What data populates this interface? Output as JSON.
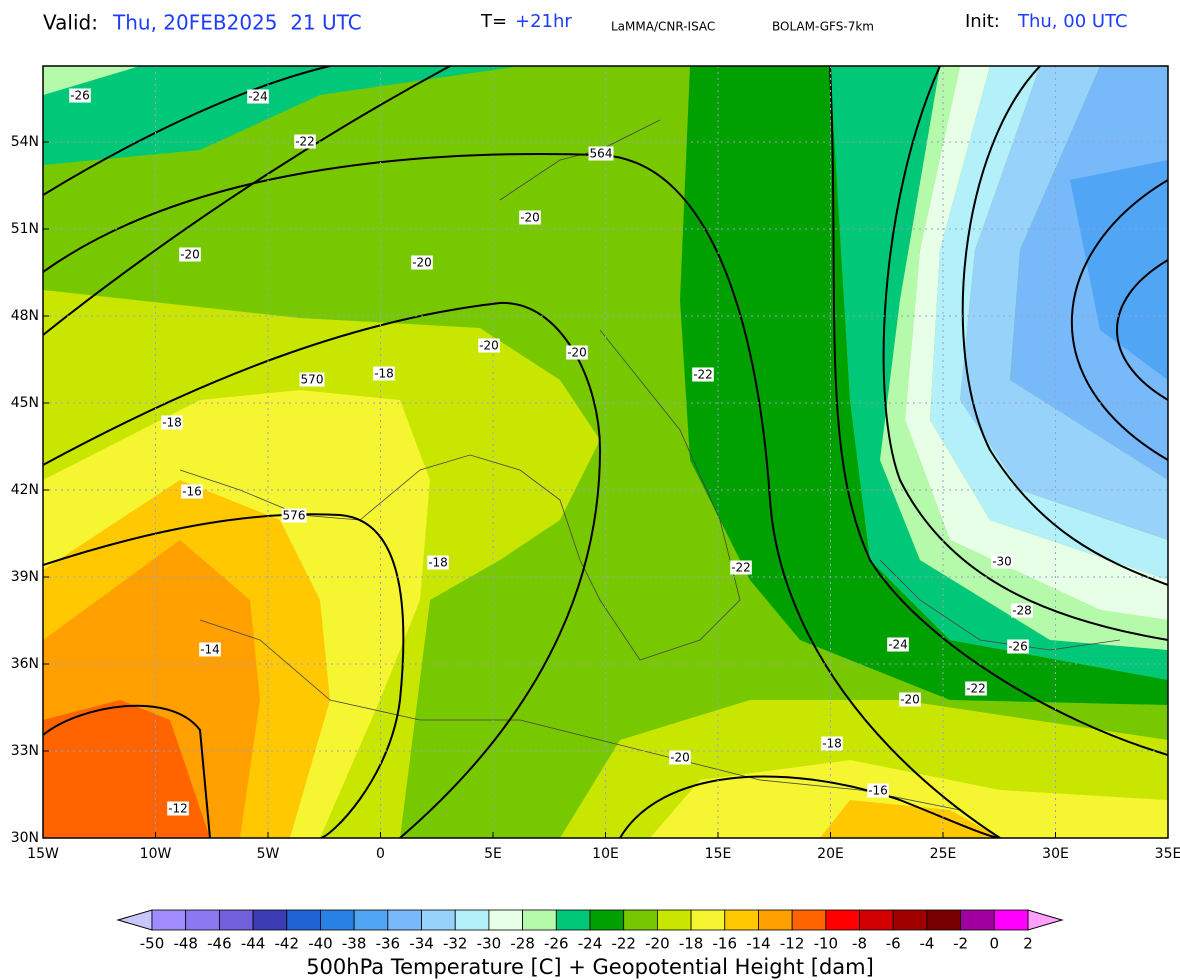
{
  "header": {
    "valid_label": "Valid:",
    "valid_time": "Thu, 20FEB2025  21 UTC",
    "lead_label": "T=",
    "lead_time": "+21hr",
    "source": "LaMMA/CNR-ISAC",
    "model": "BOLAM-GFS-7km",
    "init_label": "Init:",
    "init_time": "Thu, 00 UTC"
  },
  "map": {
    "lon_ticks": [
      {
        "value": -15,
        "label": "15W"
      },
      {
        "value": -10,
        "label": "10W"
      },
      {
        "value": -5,
        "label": "5W"
      },
      0,
      {
        "value": 5,
        "label": "5E"
      },
      {
        "value": 10,
        "label": "10E"
      },
      {
        "value": 15,
        "label": "15E"
      },
      {
        "value": 20,
        "label": "20E"
      },
      {
        "value": 25,
        "label": "25E"
      },
      {
        "value": 30,
        "label": "30E"
      },
      {
        "value": 35,
        "label": "35E"
      }
    ],
    "lat_ticks": [
      {
        "value": 54,
        "label": "54N"
      },
      {
        "value": 51,
        "label": "51N"
      },
      {
        "value": 48,
        "label": "48N"
      },
      {
        "value": 45,
        "label": "45N"
      },
      {
        "value": 42,
        "label": "42N"
      },
      {
        "value": 39,
        "label": "39N"
      },
      {
        "value": 36,
        "label": "36N"
      },
      {
        "value": 33,
        "label": "33N"
      },
      {
        "value": 30,
        "label": "30N"
      }
    ],
    "grid": true,
    "contour_labels": [
      "-26",
      "-24",
      "-22",
      "564",
      "-20",
      "-20",
      "-20",
      "-20",
      "-20",
      "-22",
      "570",
      "-18",
      "-18",
      "-16",
      "576",
      "-18",
      "-22",
      "-30",
      "-28",
      "-24",
      "-26",
      "-14",
      "-20",
      "-22",
      "-18",
      "-20",
      "-16",
      "-12"
    ]
  },
  "colorbar": {
    "levels": [
      -50,
      -48,
      -46,
      -44,
      -42,
      -40,
      -38,
      -36,
      -34,
      -32,
      -30,
      -28,
      -26,
      -24,
      -22,
      -20,
      -18,
      -16,
      -14,
      -12,
      -10,
      -8,
      -6,
      -4,
      -2,
      0,
      2
    ],
    "colors": [
      "#a08cff",
      "#8c78f0",
      "#7060dc",
      "#3c3cb4",
      "#1e64d2",
      "#2882e6",
      "#50a5f5",
      "#78b9fa",
      "#96d2fa",
      "#b4f0fa",
      "#e6ffe6",
      "#b4faaa",
      "#00c878",
      "#00a000",
      "#78c800",
      "#c8e600",
      "#f5f532",
      "#ffc800",
      "#ffa000",
      "#ff6400",
      "#ff0000",
      "#d20000",
      "#a00000",
      "#780000",
      "#a000a0",
      "#ff00ff"
    ],
    "under_color": "#c8c8ff",
    "over_color": "#ffa0ff",
    "caption": "500hPa Temperature [C] + Geopotential Height [dam]"
  }
}
